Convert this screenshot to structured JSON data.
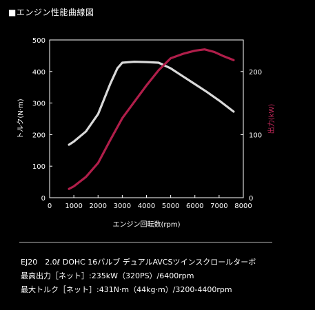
{
  "header": {
    "title": "■エンジン性能曲線図"
  },
  "chart_data": {
    "type": "line",
    "xlabel": "エンジン回転数(rpm)",
    "ylabel_left": "トルク(N·m)",
    "ylabel_right": "出力(kW)",
    "xlim": [
      0,
      8000
    ],
    "ylim_left": [
      0,
      500
    ],
    "ylim_right": [
      0,
      250
    ],
    "x_ticks": [
      0,
      1000,
      2000,
      3000,
      4000,
      5000,
      6000,
      7000,
      8000
    ],
    "y_ticks_left": [
      0,
      100,
      200,
      300,
      400,
      500
    ],
    "y_ticks_right": [
      0,
      100,
      200
    ],
    "grid": false,
    "series": [
      {
        "color": "#d9d9d9",
        "axis": "left",
        "x": [
          800,
          1000,
          1500,
          2000,
          2500,
          2800,
          3000,
          3500,
          4000,
          4500,
          5000,
          5500,
          6000,
          6500,
          7000,
          7600
        ],
        "y": [
          168,
          178,
          210,
          265,
          360,
          410,
          428,
          431,
          430,
          428,
          410,
          385,
          360,
          335,
          308,
          273
        ]
      },
      {
        "color": "#b01e4a",
        "axis": "right",
        "x": [
          800,
          1000,
          1500,
          2000,
          2500,
          3000,
          3500,
          4000,
          4500,
          5000,
          5500,
          6000,
          6400,
          6800,
          7200,
          7600
        ],
        "y": [
          14,
          18,
          33,
          55,
          91,
          126,
          152,
          178,
          202,
          221,
          228,
          233,
          235,
          231,
          224,
          218
        ]
      }
    ]
  },
  "specs": {
    "line1": "EJ20　2.0ℓ DOHC 16バルブ デュアルAVCSツインスクロールターボ",
    "line2": "最高出力［ネット］:235kW（320PS）/6400rpm",
    "line3": "最大トルク［ネット］:431N·m（44kg·m）/3200-4400rpm"
  }
}
